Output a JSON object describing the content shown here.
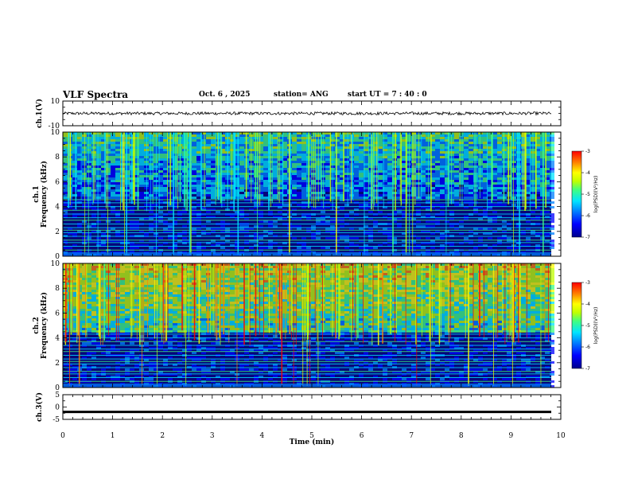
{
  "header": {
    "title": "VLF Spectra",
    "date": "Oct. 6  , 2025",
    "station": "station= ANG",
    "start": "start  UT =   7 : 40 : 0"
  },
  "chart_data": [
    {
      "panel": "ch1-waveform",
      "type": "line",
      "ylabel": "ch.1(V)",
      "ylim": [
        -10,
        10
      ],
      "yticks": [
        "10",
        "-10"
      ],
      "xlim": [
        0,
        9.83
      ],
      "signal": {
        "center": 0,
        "amplitude_range": [
          -1.2,
          1.2
        ]
      }
    },
    {
      "panel": "ch1-spectrogram",
      "type": "heatmap",
      "ylabel": "ch.1\nFrequency  (kHz)",
      "ylim": [
        0,
        10
      ],
      "yticks": [
        "0",
        "2",
        "4",
        "6",
        "8",
        "10"
      ],
      "xlim": [
        0,
        9.83
      ],
      "noise_floor_khz": 4.8,
      "colorbar": {
        "label": "log(PSD)(V²/Hz)",
        "range": [
          -7,
          -3
        ],
        "ticks": [
          "-3",
          "-4",
          "-5",
          "-6",
          "-7"
        ]
      }
    },
    {
      "panel": "ch2-spectrogram",
      "type": "heatmap",
      "ylabel": "ch.2\nFrequency  (kHz)",
      "ylim": [
        0,
        10
      ],
      "yticks": [
        "0",
        "2",
        "4",
        "6",
        "8",
        "10"
      ],
      "xlim": [
        0,
        9.83
      ],
      "noise_floor_khz": 4.6,
      "colorbar": {
        "label": "log(PSD)(V²/Hz)",
        "range": [
          -7,
          -3
        ],
        "ticks": [
          "-3",
          "-4",
          "-5",
          "-6",
          "-7"
        ]
      }
    },
    {
      "panel": "ch3-waveform",
      "type": "line",
      "ylabel": "ch.3(V)",
      "ylim": [
        -5,
        5
      ],
      "yticks": [
        "5",
        "0",
        "-5"
      ],
      "xlim": [
        0,
        9.83
      ],
      "signal": {
        "center": -1.9,
        "amplitude_range": [
          -0.4,
          0.4
        ]
      }
    }
  ],
  "xaxis": {
    "label": "Time  (min)",
    "range": [
      0,
      10
    ],
    "ticks": [
      "0",
      "1",
      "2",
      "3",
      "4",
      "5",
      "6",
      "7",
      "8",
      "9",
      "10"
    ]
  },
  "colors": {
    "scale": [
      "#00008b",
      "#0000ff",
      "#0080ff",
      "#00e5ff",
      "#40ff80",
      "#c0ff00",
      "#ffff00",
      "#ff8000",
      "#ff0000"
    ]
  }
}
